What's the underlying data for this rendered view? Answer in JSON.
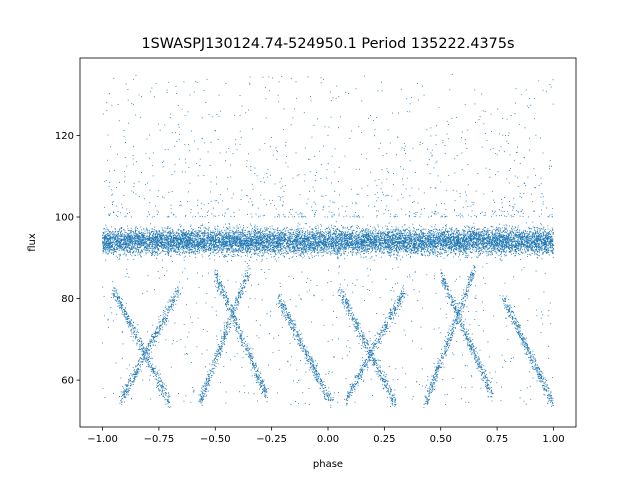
{
  "chart_data": {
    "type": "scatter",
    "title": "1SWASPJ130124.74-524950.1 Period 135222.4375s",
    "xlabel": "phase",
    "ylabel": "flux",
    "xlim": [
      -1.1,
      1.1
    ],
    "ylim": [
      48.5,
      139
    ],
    "xticks": [
      -1.0,
      -0.75,
      -0.5,
      -0.25,
      0.0,
      0.25,
      0.5,
      0.75,
      1.0
    ],
    "xtick_labels": [
      "−1.00",
      "−0.75",
      "−0.50",
      "−0.25",
      "0.00",
      "0.25",
      "0.50",
      "0.75",
      "1.00"
    ],
    "yticks": [
      60,
      80,
      100,
      120
    ],
    "ytick_labels": [
      "60",
      "80",
      "100",
      "120"
    ],
    "grid": false,
    "series": [
      {
        "color": "#1f77b4",
        "baseline_band": {
          "x_range": [
            -1.0,
            1.0
          ],
          "center": 94,
          "spread": 4
        },
        "outliers_upper_max": 135,
        "dip_tracks": [
          {
            "x_start": -0.95,
            "y_start": 82,
            "x_end": -0.7,
            "y_end": 54
          },
          {
            "x_start": -0.92,
            "y_start": 55,
            "x_end": -0.66,
            "y_end": 82
          },
          {
            "x_start": -0.57,
            "y_start": 54,
            "x_end": -0.35,
            "y_end": 87
          },
          {
            "x_start": -0.5,
            "y_start": 86,
            "x_end": -0.27,
            "y_end": 56
          },
          {
            "x_start": -0.22,
            "y_start": 80,
            "x_end": 0.02,
            "y_end": 54
          },
          {
            "x_start": 0.05,
            "y_start": 82,
            "x_end": 0.3,
            "y_end": 54
          },
          {
            "x_start": 0.08,
            "y_start": 55,
            "x_end": 0.34,
            "y_end": 82
          },
          {
            "x_start": 0.43,
            "y_start": 54,
            "x_end": 0.65,
            "y_end": 87
          },
          {
            "x_start": 0.5,
            "y_start": 86,
            "x_end": 0.73,
            "y_end": 56
          },
          {
            "x_start": 0.78,
            "y_start": 80,
            "x_end": 1.0,
            "y_end": 54
          }
        ]
      }
    ]
  }
}
